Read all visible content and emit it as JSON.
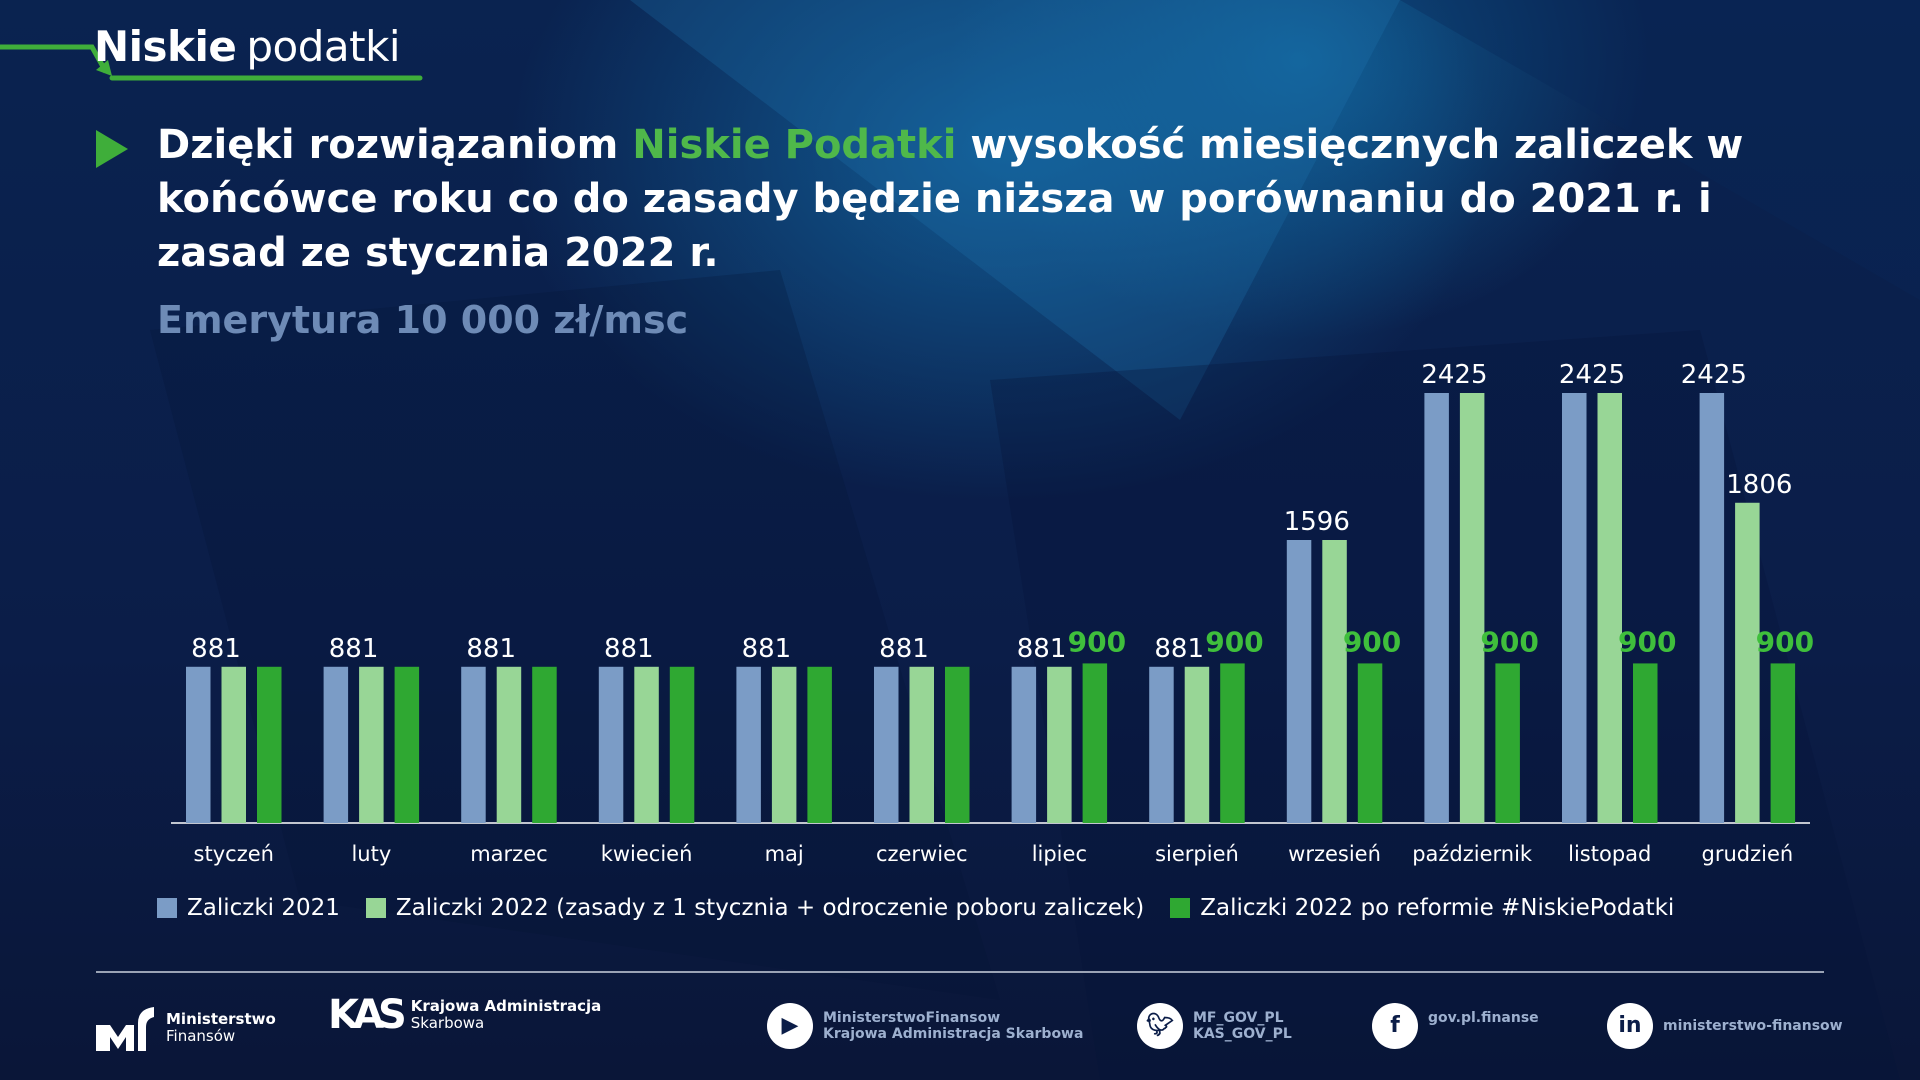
{
  "brand": {
    "bold": "Niskie",
    "light": "podatki"
  },
  "title": {
    "part1": "Dzięki rozwiązaniom ",
    "highlight": "Niskie Podatki",
    "part2": " wysokość miesięcznych zaliczek w końcówce roku co do zasady będzie niższa w porównaniu do 2021 r. i zasad ze stycznia 2022 r."
  },
  "subtitle": "Emerytura 10 000 zł/msc",
  "colors": {
    "accent": "#4fb84a",
    "s2021": "#7b9cc6",
    "s2022a": "#98d696",
    "s2022b": "#2fa832"
  },
  "chart_data": {
    "type": "bar",
    "categories": [
      "styczeń",
      "luty",
      "marzec",
      "kwiecień",
      "maj",
      "czerwiec",
      "lipiec",
      "sierpień",
      "wrzesień",
      "październik",
      "listopad",
      "grudzień"
    ],
    "series": [
      {
        "name": "Zaliczki 2021",
        "color": "#7b9cc6",
        "values": [
          881,
          881,
          881,
          881,
          881,
          881,
          881,
          881,
          1596,
          2425,
          2425,
          2425
        ]
      },
      {
        "name": "Zaliczki 2022 (zasady z 1 stycznia + odroczenie poboru zaliczek)",
        "color": "#98d696",
        "values": [
          881,
          881,
          881,
          881,
          881,
          881,
          881,
          881,
          1596,
          2425,
          2425,
          1806
        ]
      },
      {
        "name": "Zaliczki 2022 po reformie #NiskiePodatki",
        "color": "#2fa832",
        "values": [
          881,
          881,
          881,
          881,
          881,
          881,
          900,
          900,
          900,
          900,
          900,
          900
        ]
      }
    ],
    "ylim": [
      0,
      2425
    ],
    "grid": false,
    "legend": "bottom"
  },
  "footer": {
    "mf": {
      "line1": "Ministerstwo",
      "line2": "Finansów"
    },
    "kas": {
      "line1": "Krajowa Administracja",
      "line2": "Skarbowa"
    },
    "youtube": {
      "line1": "MinisterstwoFinansow",
      "line2": "Krajowa Administracja Skarbowa"
    },
    "twitter": {
      "line1": "MF_GOV_PL",
      "line2": "KAS_GOV_PL"
    },
    "facebook": {
      "line1": "gov.pl.finanse"
    },
    "linkedin": {
      "line1": "ministerstwo-finansow"
    }
  }
}
